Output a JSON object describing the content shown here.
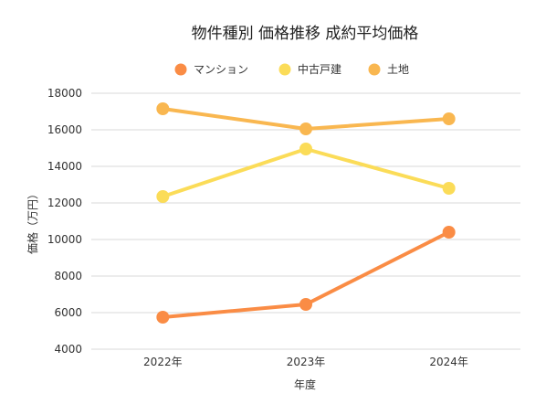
{
  "chart_data": {
    "type": "line",
    "title": "物件種別 価格推移 成約平均価格",
    "xlabel": "年度",
    "ylabel": "価格（万円）",
    "categories": [
      "2022年",
      "2023年",
      "2024年"
    ],
    "ylim": [
      4000,
      18000
    ],
    "yticks": [
      4000,
      6000,
      8000,
      10000,
      12000,
      14000,
      16000,
      18000
    ],
    "grid": true,
    "legend_position": "top",
    "series": [
      {
        "name": "マンション",
        "color": "#fa8c45",
        "values": [
          5750,
          6450,
          10400
        ]
      },
      {
        "name": "中古戸建",
        "color": "#fbdc58",
        "values": [
          12350,
          14950,
          12800
        ]
      },
      {
        "name": "土地",
        "color": "#f9b750",
        "values": [
          17150,
          16050,
          16600
        ]
      }
    ]
  }
}
